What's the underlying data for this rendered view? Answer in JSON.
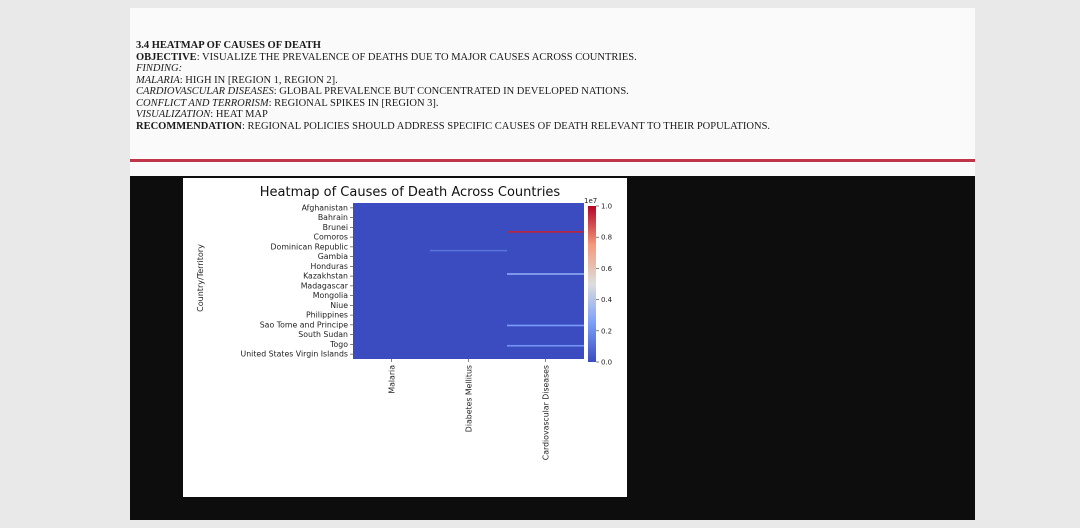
{
  "document": {
    "heading": "3.4 HEATMAP OF CAUSES OF DEATH",
    "objective_label": "OBJECTIVE",
    "objective_text": ": VISUALIZE THE PREVALENCE OF DEATHS DUE TO MAJOR CAUSES ACROSS COUNTRIES.",
    "finding_label": "FINDING:",
    "malaria_label": "MALARIA",
    "malaria_text": ": HIGH IN [REGION 1, REGION 2].",
    "cardio_label": "CARDIOVASCULAR DISEASES",
    "cardio_text": ": GLOBAL PREVALENCE BUT CONCENTRATED IN DEVELOPED NATIONS.",
    "conflict_label": "CONFLICT AND TERRORISM",
    "conflict_text": ": REGIONAL SPIKES IN [REGION 3].",
    "visualization_label": "VISUALIZATION",
    "visualization_text": ": HEAT MAP",
    "recommendation_label": "RECOMMENDATION",
    "recommendation_text": ": REGIONAL POLICIES SHOULD ADDRESS SPECIFIC CAUSES OF DEATH RELEVANT TO THEIR POPULATIONS."
  },
  "colors": {
    "rule": "#c0354a",
    "cool": "#3b4cc0",
    "warm": "#b40426"
  },
  "chart_data": {
    "type": "heatmap",
    "title": "Heatmap of Causes of Death Across Countries",
    "ylabel": "Country/Territory",
    "xlabel": "",
    "colorbar_label": "1e7",
    "colorbar_range": [
      0.0,
      1.0
    ],
    "colorbar_ticks": [
      "1.0",
      "0.8",
      "0.6",
      "0.4",
      "0.2",
      "0.0"
    ],
    "colormap": "coolwarm",
    "y_tick_labels": [
      "Afghanistan",
      "Bahrain",
      "Brunei",
      "Comoros",
      "Dominican Republic",
      "Gambia",
      "Honduras",
      "Kazakhstan",
      "Madagascar",
      "Mongolia",
      "Niue",
      "Philippines",
      "Sao Tome and Principe",
      "South Sudan",
      "Togo",
      "United States Virgin Islands"
    ],
    "x_tick_labels": [
      "Malaria",
      "Diabetes Mellitus",
      "Cardiovascular Diseases"
    ],
    "highlights": [
      {
        "column": "Cardiovascular Diseases",
        "row_fraction": 0.18,
        "value": 0.95
      },
      {
        "column": "Cardiovascular Diseases",
        "row_fraction": 0.45,
        "value": 0.3
      },
      {
        "column": "Cardiovascular Diseases",
        "row_fraction": 0.78,
        "value": 0.25
      },
      {
        "column": "Cardiovascular Diseases",
        "row_fraction": 0.91,
        "value": 0.22
      },
      {
        "column": "Diabetes Mellitus",
        "row_fraction": 0.3,
        "value": 0.12
      }
    ]
  }
}
